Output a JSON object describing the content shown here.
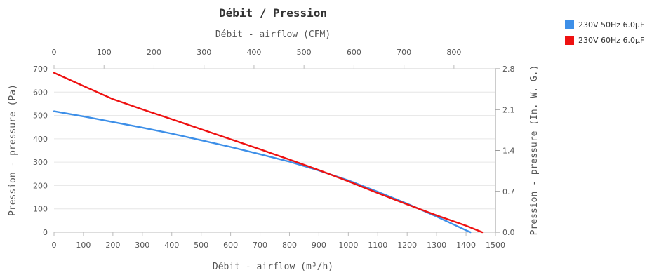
{
  "chart_data": {
    "type": "line",
    "title": "Débit / Pression",
    "x_top_label": "Débit - airflow (CFM)",
    "x_bottom_label": "Débit - airflow (m³/h)",
    "y_left_label": "Pression - pressure (Pa)",
    "y_right_label": "Pression - pressure (In. W. G.)",
    "x_bottom_ticks": [
      "0",
      "100",
      "200",
      "300",
      "400",
      "500",
      "600",
      "700",
      "800",
      "900",
      "1000",
      "1100",
      "1200",
      "1300",
      "1400",
      "1500"
    ],
    "x_top_ticks": [
      "0",
      "100",
      "200",
      "300",
      "400",
      "500",
      "600",
      "700",
      "800"
    ],
    "y_left_ticks": [
      "0",
      "100",
      "200",
      "300",
      "400",
      "500",
      "600",
      "700"
    ],
    "y_right_ticks": [
      "0.0",
      "0.7",
      "1.4",
      "2.1",
      "2.8"
    ],
    "xlim": [
      0,
      1500
    ],
    "ylim": [
      0,
      700
    ],
    "x_top_lim_cfm": [
      0,
      883
    ],
    "y_right_lim_inwg": [
      0,
      2.8
    ],
    "grid": true,
    "legend_position": "top-right",
    "series": [
      {
        "name": "230V 50Hz 6.0µF",
        "color": "#3d8fe8",
        "x": [
          0,
          100,
          200,
          300,
          400,
          500,
          600,
          700,
          800,
          900,
          1000,
          1100,
          1200,
          1300,
          1400,
          1415
        ],
        "y": [
          518,
          496,
          472,
          448,
          422,
          394,
          365,
          334,
          302,
          264,
          222,
          173,
          122,
          67,
          8,
          0
        ]
      },
      {
        "name": "230V 60Hz 6.0µF",
        "color": "#ee1111",
        "x": [
          0,
          100,
          200,
          300,
          400,
          500,
          600,
          700,
          800,
          900,
          1000,
          1100,
          1200,
          1300,
          1400,
          1455
        ],
        "y": [
          683,
          626,
          570,
          526,
          484,
          441,
          398,
          355,
          311,
          266,
          218,
          168,
          119,
          72,
          28,
          0
        ]
      }
    ]
  }
}
